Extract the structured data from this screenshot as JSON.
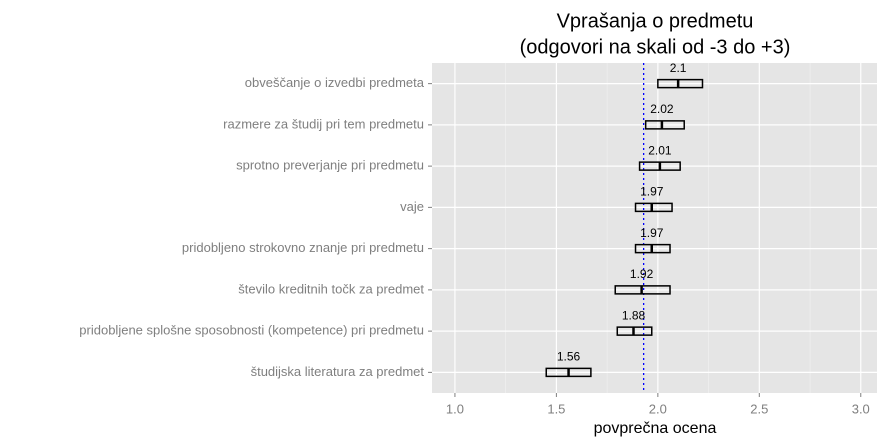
{
  "chart_data": {
    "type": "crossbar",
    "title": "Vprašanja o predmetu",
    "subtitle": "(odgovori na skali od -3 do +3)",
    "x_label": "povprečna ocena",
    "categories": [
      "obveščanje o izvedbi predmeta",
      "razmere za študij pri tem predmetu",
      "sprotno preverjanje pri predmetu",
      "vaje",
      "pridobljeno strokovno znanje pri predmetu",
      "število kreditnih točk za predmet",
      "pridobljene splošne sposobnosti (kompetence) pri predmetu",
      "študijska literatura za predmet"
    ],
    "values": [
      2.1,
      2.02,
      2.01,
      1.97,
      1.97,
      1.92,
      1.88,
      1.56
    ],
    "lower": [
      2.0,
      1.94,
      1.91,
      1.89,
      1.89,
      1.79,
      1.8,
      1.45
    ],
    "upper": [
      2.22,
      2.13,
      2.11,
      2.07,
      2.06,
      2.06,
      1.97,
      1.67
    ],
    "reference_line": 1.93,
    "reference_color": "#0000ff",
    "color": "#000000",
    "xlim": [
      0.887,
      3.08
    ],
    "xticks": [
      {
        "value": 1,
        "label": "1.0"
      },
      1.5,
      {
        "value": 2,
        "label": "2.0"
      },
      2.5,
      {
        "value": 3,
        "label": "3.0"
      }
    ],
    "grid": true
  }
}
